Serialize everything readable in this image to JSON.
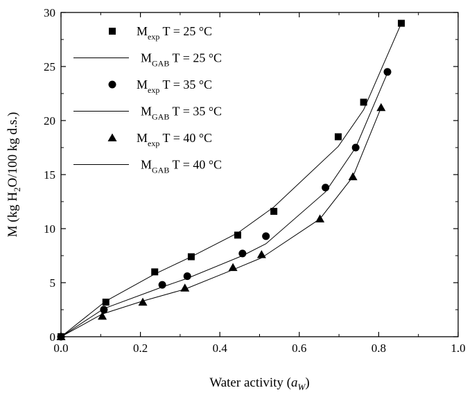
{
  "chart_data": {
    "type": "scatter",
    "xlabel": {
      "text": "Water activity (",
      "var": "a",
      "sub": "W",
      "close": ")"
    },
    "ylabel": {
      "pre": "M (kg H",
      "sub": "2",
      "post": "O/100 kg d.s.)"
    },
    "xlim": [
      0.0,
      1.0
    ],
    "ylim": [
      0,
      30
    ],
    "x_ticks": [
      0.0,
      0.2,
      0.4,
      0.6,
      0.8,
      1.0
    ],
    "x_tick_labels": [
      "0.0",
      "0.2",
      "0.4",
      "0.6",
      "0.8",
      "1.0"
    ],
    "y_ticks": [
      0,
      5,
      10,
      15,
      20,
      25,
      30
    ],
    "y_tick_labels": [
      "0",
      "5",
      "10",
      "15",
      "20",
      "25",
      "30"
    ],
    "grid": false,
    "legend_position": "top-left",
    "legend": [
      {
        "kind": "marker",
        "marker": "square",
        "main": "M",
        "sub": "exp",
        "rest": " T = 25 °C"
      },
      {
        "kind": "line",
        "main": "M",
        "sub": "GAB",
        "rest": " T = 25 °C"
      },
      {
        "kind": "marker",
        "marker": "circle",
        "main": "M",
        "sub": "exp",
        "rest": " T = 35 °C"
      },
      {
        "kind": "line",
        "main": "M",
        "sub": "GAB",
        "rest": " T = 35 °C"
      },
      {
        "kind": "marker",
        "marker": "triangle",
        "main": "M",
        "sub": "exp",
        "rest": " T = 40 °C"
      },
      {
        "kind": "line",
        "main": "M",
        "sub": "GAB",
        "rest": " T = 40 °C"
      }
    ],
    "series": [
      {
        "name": "Mexp T = 25 °C",
        "marker": "square",
        "x": [
          0.0,
          0.113,
          0.236,
          0.328,
          0.445,
          0.536,
          0.698,
          0.762,
          0.857
        ],
        "y": [
          0.0,
          3.2,
          6.0,
          7.4,
          9.4,
          11.6,
          18.5,
          21.7,
          29.0
        ]
      },
      {
        "name": "MGAB T = 25 °C",
        "marker": "line",
        "x": [
          0.0,
          0.113,
          0.236,
          0.328,
          0.445,
          0.536,
          0.698,
          0.762,
          0.857
        ],
        "y": [
          0.0,
          3.3,
          5.8,
          7.4,
          9.6,
          12.0,
          17.6,
          21.0,
          29.0
        ]
      },
      {
        "name": "Mexp T = 35 °C",
        "marker": "circle",
        "x": [
          0.0,
          0.108,
          0.255,
          0.318,
          0.457,
          0.516,
          0.666,
          0.742,
          0.822
        ],
        "y": [
          0.0,
          2.5,
          4.8,
          5.6,
          7.7,
          9.3,
          13.8,
          17.5,
          24.5
        ]
      },
      {
        "name": "MGAB T = 35 °C",
        "marker": "line",
        "x": [
          0.0,
          0.108,
          0.255,
          0.318,
          0.457,
          0.516,
          0.666,
          0.742,
          0.822
        ],
        "y": [
          0.0,
          2.6,
          4.6,
          5.4,
          7.5,
          8.6,
          13.4,
          17.5,
          24.4
        ]
      },
      {
        "name": "Mexp T = 40 °C",
        "marker": "triangle",
        "x": [
          0.0,
          0.104,
          0.206,
          0.312,
          0.433,
          0.505,
          0.652,
          0.735,
          0.806
        ],
        "y": [
          0.0,
          1.9,
          3.2,
          4.5,
          6.4,
          7.6,
          10.9,
          14.8,
          21.2
        ]
      },
      {
        "name": "MGAB T = 40 °C",
        "marker": "line",
        "x": [
          0.0,
          0.104,
          0.206,
          0.312,
          0.433,
          0.505,
          0.652,
          0.735,
          0.806
        ],
        "y": [
          0.0,
          2.1,
          3.3,
          4.4,
          6.2,
          7.3,
          10.9,
          14.8,
          21.2
        ]
      }
    ]
  }
}
